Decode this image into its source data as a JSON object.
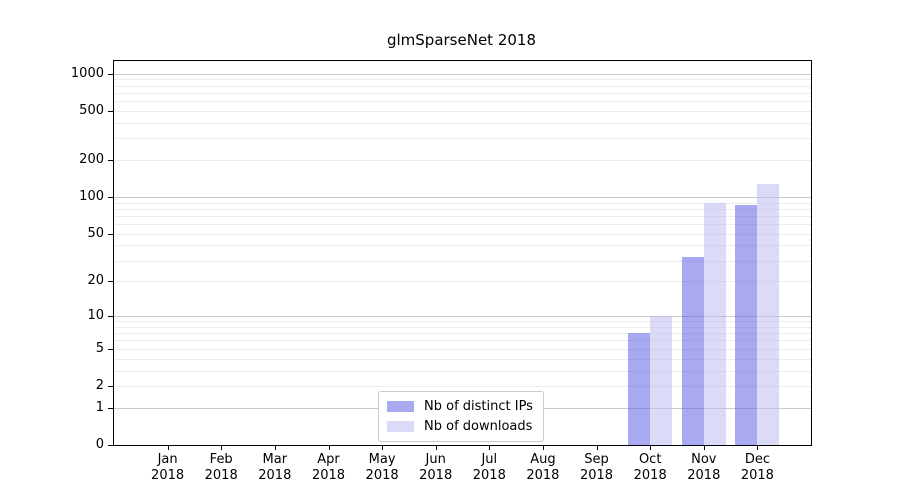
{
  "title": "glmSparseNet 2018",
  "legend": {
    "items": [
      {
        "label": "Nb of distinct IPs",
        "series": "ips"
      },
      {
        "label": "Nb of downloads",
        "series": "downloads"
      }
    ]
  },
  "colors": {
    "ips_fill": "rgba(99,99,231,0.55)",
    "downloads_fill": "rgba(190,190,242,0.55)",
    "ips_legend": "#a9a9f2",
    "downloads_legend": "#dbdbf8",
    "grid_major": "#c9c9c9",
    "grid_minor": "#ececec",
    "axis": "#000000"
  },
  "chart_data": {
    "type": "bar",
    "title": "glmSparseNet 2018",
    "categories": [
      "Jan",
      "Feb",
      "Mar",
      "Apr",
      "May",
      "Jun",
      "Jul",
      "Aug",
      "Sep",
      "Oct",
      "Nov",
      "Dec"
    ],
    "x_tick_second_line": "2018",
    "series": [
      {
        "name": "Nb of distinct IPs",
        "values": [
          0,
          0,
          0,
          0,
          0,
          0,
          0,
          0,
          0,
          7,
          32,
          86
        ]
      },
      {
        "name": "Nb of downloads",
        "values": [
          0,
          0,
          0,
          0,
          0,
          0,
          0,
          0,
          0,
          10,
          90,
          127
        ]
      }
    ],
    "y_ticks": [
      0,
      1,
      2,
      5,
      10,
      20,
      50,
      100,
      200,
      500,
      1000
    ],
    "y_scale": "log1p",
    "ylim": [
      0,
      1270
    ],
    "xlabel": "",
    "ylabel": "",
    "grid": "on",
    "legend_position": "lower center"
  }
}
